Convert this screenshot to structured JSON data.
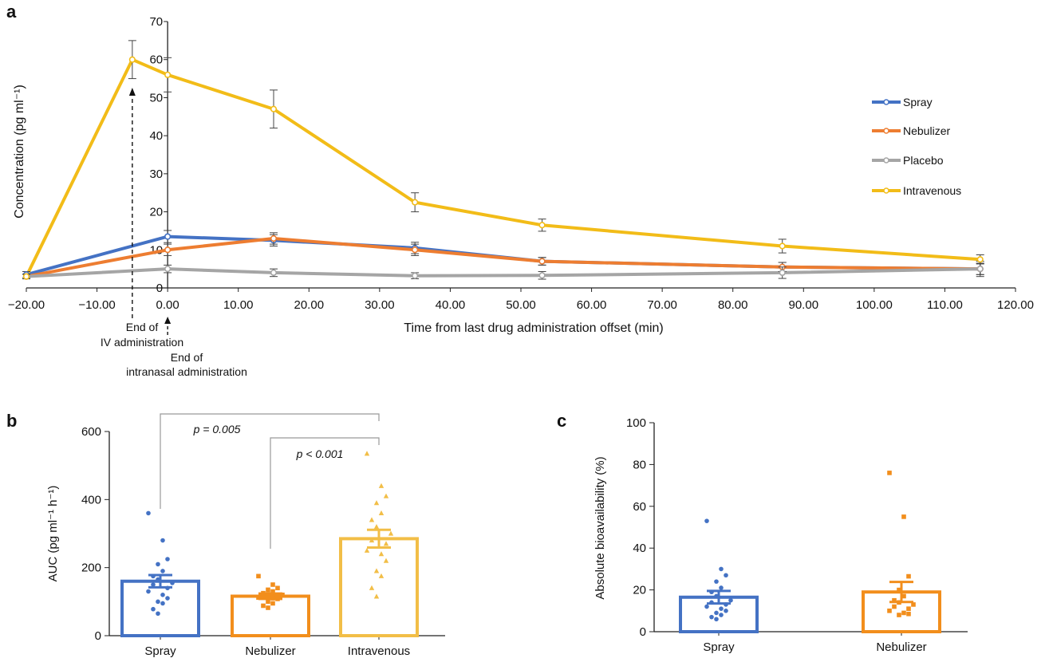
{
  "panels": {
    "a": "a",
    "b": "b",
    "c": "c"
  },
  "chart_data": [
    {
      "type": "line",
      "panel": "a",
      "xlabel": "Time from last drug administration offset (min)",
      "ylabel": "Concentration (pg ml⁻¹)",
      "xlim": [
        -20,
        120
      ],
      "ylim": [
        0,
        70
      ],
      "x_ticks": [
        -20,
        -10,
        0,
        10,
        20,
        30,
        40,
        50,
        60,
        70,
        80,
        90,
        100,
        110,
        120
      ],
      "x_tick_labels": [
        "−20.00",
        "−10.00",
        "0.00",
        "10.00",
        "20.00",
        "30.00",
        "40.00",
        "50.00",
        "60.00",
        "70.00",
        "80.00",
        "90.00",
        "100.00",
        "110.00",
        "120.00"
      ],
      "y_ticks": [
        0,
        10,
        20,
        30,
        40,
        50,
        60,
        70
      ],
      "legend_position": "right",
      "series": [
        {
          "name": "Spray",
          "color": "#4472C4",
          "points": [
            [
              -20,
              3.5
            ],
            [
              0,
              13.5
            ],
            [
              15,
              12.5
            ],
            [
              35,
              10.5
            ],
            [
              53,
              7
            ],
            [
              87,
              5.5
            ],
            [
              115,
              5
            ]
          ],
          "err": [
            0.8,
            1.6,
            1.5,
            1.5,
            1.0,
            1.2,
            1.5
          ]
        },
        {
          "name": "Nebulizer",
          "color": "#ED7D31",
          "points": [
            [
              -20,
              3
            ],
            [
              0,
              10
            ],
            [
              15,
              13
            ],
            [
              35,
              10
            ],
            [
              53,
              7
            ],
            [
              87,
              5.5
            ],
            [
              115,
              5
            ]
          ],
          "err": [
            0.6,
            1.5,
            1.5,
            1.5,
            1.0,
            1.2,
            1.5
          ]
        },
        {
          "name": "Placebo",
          "color": "#A5A5A5",
          "points": [
            [
              -20,
              3
            ],
            [
              0,
              5
            ],
            [
              15,
              4
            ],
            [
              35,
              3.2
            ],
            [
              53,
              3.3
            ],
            [
              87,
              4
            ],
            [
              115,
              5
            ]
          ],
          "err": [
            0.6,
            1.0,
            1.0,
            0.8,
            1.0,
            1.5,
            2.0
          ]
        },
        {
          "name": "Intravenous",
          "color": "#F2BC18",
          "points": [
            [
              -20,
              3
            ],
            [
              -5,
              60
            ],
            [
              0,
              56
            ],
            [
              15,
              47
            ],
            [
              35,
              22.5
            ],
            [
              53,
              16.5
            ],
            [
              87,
              11
            ],
            [
              115,
              7.5
            ]
          ],
          "err": [
            0.6,
            5.0,
            4.5,
            5.0,
            2.5,
            1.6,
            1.8,
            1.2
          ]
        }
      ],
      "annotations": [
        {
          "x": -5,
          "lines": [
            "End of",
            "IV administration"
          ]
        },
        {
          "x": 0,
          "lines": [
            "End of",
            "intranasal administration"
          ]
        }
      ]
    },
    {
      "type": "bar",
      "panel": "b",
      "ylabel": "AUC (pg ml⁻¹ h⁻¹)",
      "ylim": [
        0,
        600
      ],
      "y_ticks": [
        0,
        200,
        400,
        600
      ],
      "categories": [
        "Spray",
        "Nebulizer",
        "Intravenous"
      ],
      "values": [
        160,
        116,
        285
      ],
      "sem": [
        18,
        8,
        26
      ],
      "colors": [
        "#4472C4",
        "#F28E1C",
        "#F2BE47"
      ],
      "point_shapes": [
        "circle",
        "square",
        "triangle"
      ],
      "points": [
        [
          360,
          280,
          225,
          210,
          190,
          175,
          165,
          155,
          150,
          140,
          130,
          120,
          110,
          100,
          95,
          78,
          65
        ],
        [
          175,
          150,
          140,
          135,
          130,
          125,
          122,
          120,
          118,
          115,
          112,
          110,
          108,
          100,
          95,
          88,
          82
        ],
        [
          535,
          440,
          410,
          390,
          360,
          340,
          320,
          300,
          280,
          270,
          250,
          240,
          220,
          190,
          175,
          140,
          115
        ]
      ],
      "comparisons": [
        {
          "from": 0,
          "to": 2,
          "label": "p = 0.005"
        },
        {
          "from": 1,
          "to": 2,
          "label": "p < 0.001"
        }
      ]
    },
    {
      "type": "bar",
      "panel": "c",
      "ylabel": "Absolute bioavailability (%)",
      "ylim": [
        0,
        100
      ],
      "y_ticks": [
        0,
        20,
        40,
        60,
        80,
        100
      ],
      "categories": [
        "Spray",
        "Nebulizer"
      ],
      "values": [
        16.5,
        19
      ],
      "sem": [
        3,
        4.8
      ],
      "colors": [
        "#4472C4",
        "#F28E1C"
      ],
      "point_shapes": [
        "circle",
        "square"
      ],
      "points": [
        [
          53,
          30,
          27,
          24,
          21,
          19,
          17,
          15,
          14,
          13,
          12,
          11,
          10,
          9,
          8,
          7,
          6
        ],
        [
          76,
          55,
          26.5,
          20,
          17,
          15,
          14,
          13,
          12,
          11,
          10,
          9,
          8.5,
          8
        ]
      ]
    }
  ]
}
